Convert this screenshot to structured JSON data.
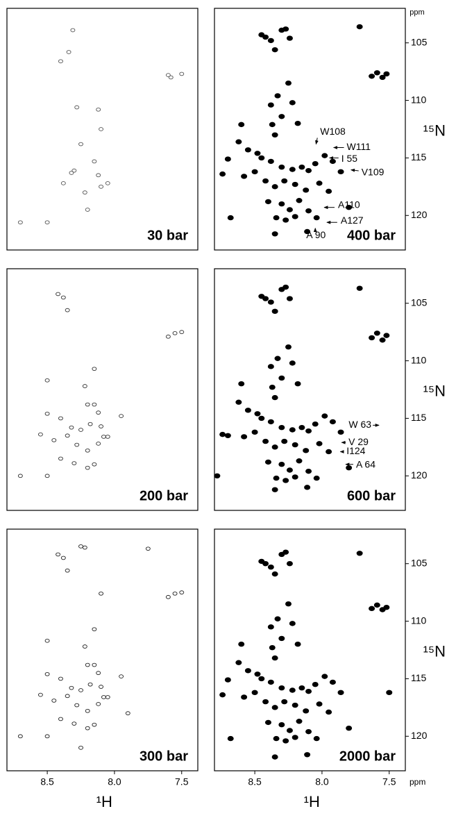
{
  "chart_data": [
    {
      "type": "scatter",
      "title": "30 bar",
      "color": "#555555",
      "filled": false,
      "xlim": [
        8.8,
        7.38
      ],
      "ylim": [
        102,
        123
      ],
      "x": [
        8.4,
        8.34,
        7.6,
        7.58,
        7.5,
        8.31,
        8.28,
        8.12,
        8.1,
        8.25,
        8.32,
        8.15,
        8.12,
        8.22,
        8.3,
        8.1,
        8.05,
        8.38,
        8.7,
        8.5,
        8.2
      ],
      "y": [
        106.6,
        105.8,
        107.8,
        108.0,
        107.7,
        103.9,
        110.6,
        110.8,
        112.5,
        113.8,
        116.3,
        115.3,
        116.5,
        118.0,
        116.1,
        117.5,
        117.2,
        117.2,
        120.6,
        120.6,
        119.5
      ]
    },
    {
      "type": "scatter",
      "title": "400 bar",
      "color": "#000000",
      "filled": true,
      "xlim": [
        8.8,
        7.38
      ],
      "ylim": [
        102,
        123
      ],
      "y_unit": "ppm",
      "y_label": "¹⁵N",
      "yticks": [
        105,
        110,
        115,
        120
      ],
      "x": [
        8.45,
        8.42,
        8.38,
        8.35,
        8.3,
        8.27,
        8.24,
        7.72,
        7.63,
        7.59,
        7.55,
        7.52,
        8.25,
        8.33,
        8.38,
        8.22,
        8.3,
        8.37,
        8.35,
        8.18,
        8.6,
        8.62,
        8.55,
        8.48,
        8.45,
        8.7,
        8.38,
        8.3,
        8.22,
        8.15,
        8.1,
        8.05,
        7.98,
        7.92,
        7.86,
        8.74,
        8.58,
        8.5,
        8.42,
        8.35,
        8.28,
        8.2,
        8.12,
        8.02,
        7.95,
        8.4,
        8.3,
        8.24,
        8.17,
        8.1,
        8.34,
        8.27,
        8.2,
        8.04,
        7.8,
        8.68,
        8.35,
        8.11
      ],
      "y": [
        104.3,
        104.5,
        104.8,
        105.6,
        103.9,
        103.8,
        104.6,
        103.6,
        107.9,
        107.6,
        108.0,
        107.7,
        108.5,
        109.6,
        110.4,
        110.2,
        111.4,
        112.1,
        113.0,
        112.0,
        112.1,
        113.6,
        114.3,
        114.6,
        115.0,
        115.1,
        115.3,
        115.8,
        116.0,
        115.8,
        116.1,
        115.5,
        114.8,
        115.3,
        116.2,
        116.4,
        116.6,
        116.2,
        117.0,
        117.5,
        117.0,
        117.3,
        117.8,
        117.2,
        117.9,
        118.8,
        119.0,
        119.5,
        118.7,
        119.6,
        120.2,
        120.4,
        120.1,
        120.2,
        119.3,
        120.2,
        121.6,
        121.4
      ],
      "annotations": [
        {
          "text": "W108",
          "x": 8.05,
          "y": 114.1
        },
        {
          "text": "W111",
          "x": 7.94,
          "y": 114.1
        },
        {
          "text": "I 55",
          "x": 7.97,
          "y": 115.0
        },
        {
          "text": "V109",
          "x": 7.81,
          "y": 116.0
        },
        {
          "text": "A110",
          "x": 8.01,
          "y": 119.3
        },
        {
          "text": "A127",
          "x": 7.99,
          "y": 120.6
        },
        {
          "text": "A 90",
          "x": 8.05,
          "y": 120.8
        }
      ]
    },
    {
      "type": "scatter",
      "title": "200 bar",
      "color": "#333333",
      "filled": false,
      "xlim": [
        8.8,
        7.38
      ],
      "ylim": [
        102,
        123
      ],
      "x": [
        8.42,
        8.38,
        8.35,
        7.6,
        7.55,
        7.5,
        8.5,
        8.22,
        8.2,
        8.15,
        8.12,
        8.15,
        8.5,
        8.4,
        8.32,
        8.25,
        8.18,
        8.1,
        8.05,
        7.95,
        8.55,
        8.45,
        8.35,
        8.28,
        8.2,
        8.12,
        8.08,
        8.4,
        8.3,
        8.2,
        8.15,
        8.7,
        8.5
      ],
      "y": [
        104.2,
        104.5,
        105.6,
        107.9,
        107.6,
        107.5,
        111.7,
        112.2,
        113.8,
        113.8,
        114.5,
        110.7,
        114.6,
        115.0,
        115.8,
        116.0,
        115.5,
        115.7,
        116.6,
        114.8,
        116.4,
        116.9,
        116.5,
        117.3,
        117.8,
        117.2,
        116.6,
        118.5,
        118.9,
        119.3,
        119.0,
        120.0,
        120.0
      ]
    },
    {
      "type": "scatter",
      "title": "600 bar",
      "color": "#000000",
      "filled": true,
      "xlim": [
        8.8,
        7.38
      ],
      "ylim": [
        102,
        123
      ],
      "y_label": "¹⁵N",
      "yticks": [
        105,
        110,
        115,
        120
      ],
      "x": [
        8.45,
        8.42,
        8.38,
        8.35,
        8.3,
        8.27,
        8.24,
        7.72,
        7.63,
        7.59,
        7.55,
        7.52,
        8.25,
        8.33,
        8.38,
        8.22,
        8.3,
        8.37,
        8.35,
        8.18,
        8.6,
        8.62,
        8.55,
        8.48,
        8.45,
        8.7,
        8.38,
        8.3,
        8.22,
        8.15,
        8.1,
        8.05,
        7.98,
        7.92,
        7.86,
        8.74,
        8.58,
        8.5,
        8.42,
        8.35,
        8.28,
        8.2,
        8.12,
        8.02,
        7.95,
        8.4,
        8.3,
        8.24,
        8.17,
        8.1,
        8.34,
        8.27,
        8.2,
        8.04,
        7.8,
        8.78,
        8.35,
        8.11
      ],
      "y": [
        104.4,
        104.6,
        104.9,
        105.7,
        103.8,
        103.6,
        104.6,
        103.7,
        108.0,
        107.6,
        108.2,
        107.8,
        108.8,
        109.8,
        110.5,
        110.2,
        111.5,
        112.3,
        113.2,
        112.0,
        112.0,
        113.6,
        114.3,
        114.6,
        115.0,
        116.5,
        115.3,
        115.8,
        116.0,
        115.8,
        116.1,
        115.5,
        114.8,
        115.3,
        116.2,
        116.4,
        116.6,
        116.2,
        117.0,
        117.5,
        117.0,
        117.3,
        117.8,
        117.2,
        117.9,
        118.8,
        119.0,
        119.5,
        118.7,
        119.6,
        120.2,
        120.4,
        120.1,
        120.2,
        119.3,
        120.0,
        121.2,
        121.0
      ],
      "annotations": [
        {
          "text": "W 63",
          "x": 7.55,
          "y": 115.6
        },
        {
          "text": "V 29",
          "x": 7.88,
          "y": 117.1
        },
        {
          "text": "I124",
          "x": 7.89,
          "y": 117.9
        },
        {
          "text": "A 64",
          "x": 7.85,
          "y": 119.0
        }
      ]
    },
    {
      "type": "scatter",
      "title": "300 bar",
      "color": "#222222",
      "filled": false,
      "xlim": [
        8.8,
        7.38
      ],
      "ylim": [
        102,
        123
      ],
      "x_label": "¹H",
      "xticks": [
        8.5,
        {
          "value": 8,
          "label": "8.0"
        },
        7.5
      ],
      "x": [
        8.42,
        8.38,
        8.35,
        7.6,
        7.55,
        7.5,
        8.5,
        8.22,
        8.2,
        8.15,
        8.12,
        8.15,
        8.5,
        8.4,
        8.32,
        8.25,
        8.18,
        8.1,
        8.05,
        7.95,
        8.55,
        8.45,
        8.35,
        8.28,
        8.2,
        8.12,
        8.08,
        8.4,
        8.3,
        8.2,
        8.15,
        8.7,
        8.5,
        8.25,
        8.22,
        7.75,
        8.1,
        8.25,
        7.9
      ],
      "y": [
        104.2,
        104.5,
        105.6,
        107.9,
        107.6,
        107.5,
        111.7,
        112.2,
        113.8,
        113.8,
        114.5,
        110.7,
        114.6,
        115.0,
        115.8,
        116.0,
        115.5,
        115.7,
        116.6,
        114.8,
        116.4,
        116.9,
        116.5,
        117.3,
        117.8,
        117.2,
        116.6,
        118.5,
        118.9,
        119.3,
        119.0,
        120.0,
        120.0,
        103.5,
        103.6,
        103.7,
        107.6,
        121.0,
        118.0
      ]
    },
    {
      "type": "scatter",
      "title": "2000 bar",
      "color": "#000000",
      "filled": true,
      "xlim": [
        8.8,
        7.38
      ],
      "ylim": [
        102,
        123
      ],
      "y_label": "¹⁵N",
      "yticks": [
        105,
        110,
        115,
        120
      ],
      "x_label": "¹H",
      "x_unit": "ppm",
      "xticks": [
        8.5,
        {
          "value": 8,
          "label": "8.0"
        },
        7.5
      ],
      "x": [
        8.45,
        8.42,
        8.38,
        8.35,
        8.3,
        8.27,
        8.24,
        7.72,
        7.63,
        7.59,
        7.55,
        7.52,
        8.25,
        8.33,
        8.38,
        8.22,
        8.3,
        8.37,
        8.35,
        8.18,
        8.6,
        8.62,
        8.55,
        8.48,
        8.45,
        8.7,
        8.38,
        8.3,
        8.22,
        8.15,
        8.1,
        8.05,
        7.98,
        7.92,
        7.86,
        8.74,
        8.58,
        8.5,
        8.42,
        8.35,
        8.28,
        8.2,
        8.12,
        8.02,
        7.95,
        8.4,
        8.3,
        8.24,
        8.17,
        8.1,
        8.34,
        8.27,
        8.2,
        8.04,
        7.8,
        8.68,
        8.35,
        8.11,
        7.5
      ],
      "y": [
        104.8,
        105.0,
        105.3,
        105.9,
        104.2,
        104.0,
        105.0,
        104.1,
        108.9,
        108.6,
        109.0,
        108.8,
        108.5,
        109.8,
        110.5,
        110.2,
        111.5,
        112.3,
        113.2,
        112.0,
        112.0,
        113.6,
        114.3,
        114.6,
        115.0,
        115.1,
        115.3,
        115.8,
        116.0,
        115.8,
        116.1,
        115.5,
        114.8,
        115.3,
        116.2,
        116.4,
        116.6,
        116.2,
        117.0,
        117.5,
        117.0,
        117.3,
        117.8,
        117.2,
        117.9,
        118.8,
        119.0,
        119.5,
        118.7,
        119.6,
        120.2,
        120.4,
        120.1,
        120.2,
        119.3,
        120.2,
        121.8,
        121.6,
        116.2
      ]
    }
  ]
}
